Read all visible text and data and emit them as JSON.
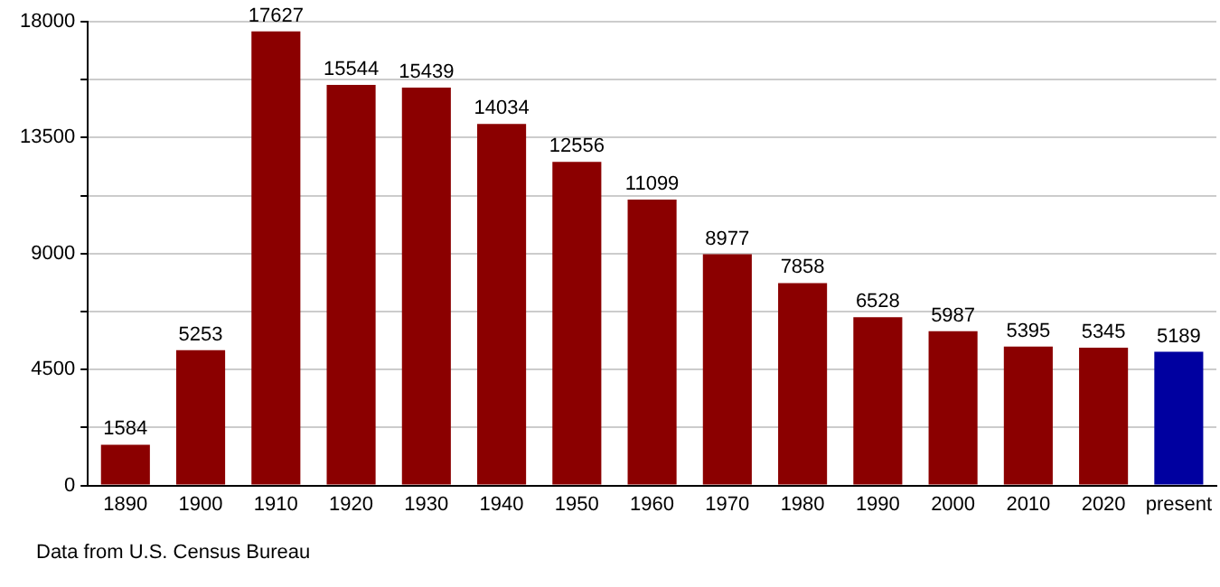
{
  "chart_data": {
    "type": "bar",
    "categories": [
      "1890",
      "1900",
      "1910",
      "1920",
      "1930",
      "1940",
      "1950",
      "1960",
      "1970",
      "1980",
      "1990",
      "2000",
      "2010",
      "2020",
      "present"
    ],
    "values": [
      1584,
      5253,
      17627,
      15544,
      15439,
      14034,
      12556,
      11099,
      8977,
      7858,
      6528,
      5987,
      5395,
      5345,
      5189
    ],
    "colors": [
      "#8b0000",
      "#8b0000",
      "#8b0000",
      "#8b0000",
      "#8b0000",
      "#8b0000",
      "#8b0000",
      "#8b0000",
      "#8b0000",
      "#8b0000",
      "#8b0000",
      "#8b0000",
      "#8b0000",
      "#8b0000",
      "#0000a0"
    ],
    "ylim": [
      0,
      18000
    ],
    "yticks": [
      0,
      {
        "value": 2250,
        "label": null
      },
      4500,
      {
        "value": 6750,
        "label": null
      },
      9000,
      {
        "value": 11250,
        "label": null
      },
      13500,
      {
        "value": 15750,
        "label": null
      },
      18000
    ],
    "grid": "y",
    "data_labels": true,
    "annotations": [
      "Data from U.S. Census Bureau"
    ]
  }
}
